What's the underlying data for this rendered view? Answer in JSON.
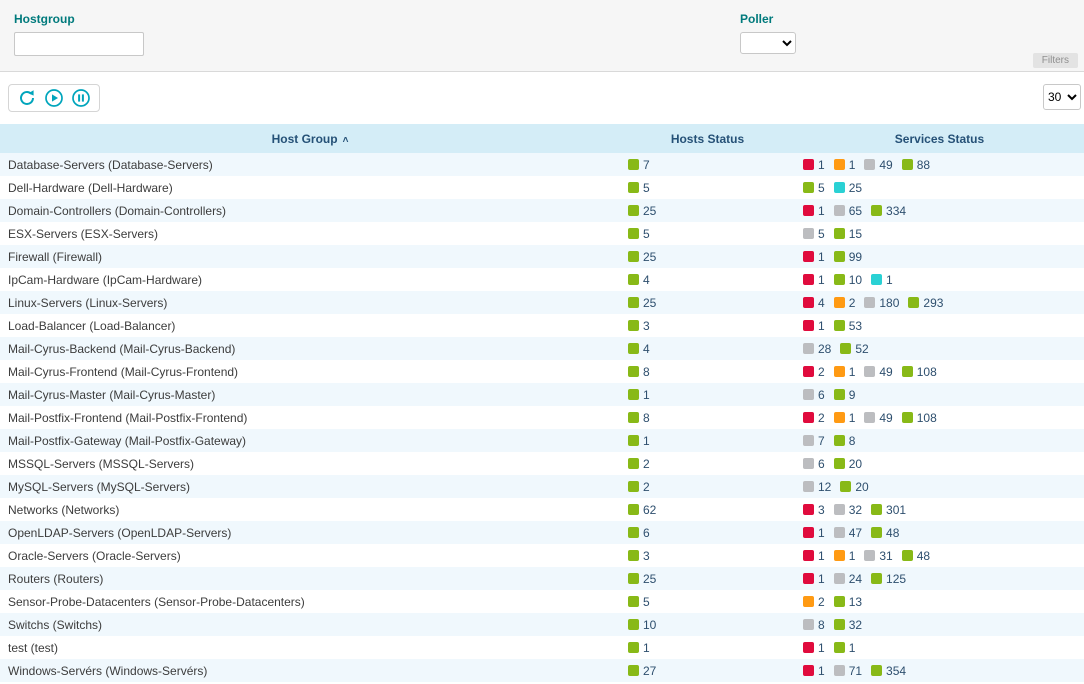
{
  "filters": {
    "hostgroup_label": "Hostgroup",
    "hostgroup_value": "",
    "poller_label": "Poller",
    "poller_value": "",
    "filters_button": "Filters"
  },
  "toolbar": {
    "refresh_icon": "refresh-icon",
    "play_icon": "play-icon",
    "pause_icon": "pause-icon",
    "page_size": "30"
  },
  "colors": {
    "ok": "#88b917",
    "critical": "#e00b3d",
    "warning": "#ff9a13",
    "unknown": "#bcbdc0",
    "pending": "#2ad1d4"
  },
  "table": {
    "columns": [
      "Host Group",
      "Hosts Status",
      "Services Status"
    ],
    "sort_column": "Host Group",
    "sort_direction": "asc",
    "rows": [
      {
        "name": "Database-Servers (Database-Servers)",
        "hosts": [
          {
            "state": "ok",
            "value": "7"
          }
        ],
        "services": [
          {
            "state": "critical",
            "value": "1"
          },
          {
            "state": "warning",
            "value": "1"
          },
          {
            "state": "unknown",
            "value": "49"
          },
          {
            "state": "ok",
            "value": "88"
          }
        ]
      },
      {
        "name": "Dell-Hardware (Dell-Hardware)",
        "hosts": [
          {
            "state": "ok",
            "value": "5"
          }
        ],
        "services": [
          {
            "state": "ok",
            "value": "5"
          },
          {
            "state": "pending",
            "value": "25"
          }
        ]
      },
      {
        "name": "Domain-Controllers (Domain-Controllers)",
        "hosts": [
          {
            "state": "ok",
            "value": "25"
          }
        ],
        "services": [
          {
            "state": "critical",
            "value": "1"
          },
          {
            "state": "unknown",
            "value": "65"
          },
          {
            "state": "ok",
            "value": "334"
          }
        ]
      },
      {
        "name": "ESX-Servers (ESX-Servers)",
        "hosts": [
          {
            "state": "ok",
            "value": "5"
          }
        ],
        "services": [
          {
            "state": "unknown",
            "value": "5"
          },
          {
            "state": "ok",
            "value": "15"
          }
        ]
      },
      {
        "name": "Firewall (Firewall)",
        "hosts": [
          {
            "state": "ok",
            "value": "25"
          }
        ],
        "services": [
          {
            "state": "critical",
            "value": "1"
          },
          {
            "state": "ok",
            "value": "99"
          }
        ]
      },
      {
        "name": "IpCam-Hardware (IpCam-Hardware)",
        "hosts": [
          {
            "state": "ok",
            "value": "4"
          }
        ],
        "services": [
          {
            "state": "critical",
            "value": "1"
          },
          {
            "state": "ok",
            "value": "10"
          },
          {
            "state": "pending",
            "value": "1"
          }
        ]
      },
      {
        "name": "Linux-Servers (Linux-Servers)",
        "hosts": [
          {
            "state": "ok",
            "value": "25"
          }
        ],
        "services": [
          {
            "state": "critical",
            "value": "4"
          },
          {
            "state": "warning",
            "value": "2"
          },
          {
            "state": "unknown",
            "value": "180"
          },
          {
            "state": "ok",
            "value": "293"
          }
        ]
      },
      {
        "name": "Load-Balancer (Load-Balancer)",
        "hosts": [
          {
            "state": "ok",
            "value": "3"
          }
        ],
        "services": [
          {
            "state": "critical",
            "value": "1"
          },
          {
            "state": "ok",
            "value": "53"
          }
        ]
      },
      {
        "name": "Mail-Cyrus-Backend (Mail-Cyrus-Backend)",
        "hosts": [
          {
            "state": "ok",
            "value": "4"
          }
        ],
        "services": [
          {
            "state": "unknown",
            "value": "28"
          },
          {
            "state": "ok",
            "value": "52"
          }
        ]
      },
      {
        "name": "Mail-Cyrus-Frontend (Mail-Cyrus-Frontend)",
        "hosts": [
          {
            "state": "ok",
            "value": "8"
          }
        ],
        "services": [
          {
            "state": "critical",
            "value": "2"
          },
          {
            "state": "warning",
            "value": "1"
          },
          {
            "state": "unknown",
            "value": "49"
          },
          {
            "state": "ok",
            "value": "108"
          }
        ]
      },
      {
        "name": "Mail-Cyrus-Master (Mail-Cyrus-Master)",
        "hosts": [
          {
            "state": "ok",
            "value": "1"
          }
        ],
        "services": [
          {
            "state": "unknown",
            "value": "6"
          },
          {
            "state": "ok",
            "value": "9"
          }
        ]
      },
      {
        "name": "Mail-Postfix-Frontend (Mail-Postfix-Frontend)",
        "hosts": [
          {
            "state": "ok",
            "value": "8"
          }
        ],
        "services": [
          {
            "state": "critical",
            "value": "2"
          },
          {
            "state": "warning",
            "value": "1"
          },
          {
            "state": "unknown",
            "value": "49"
          },
          {
            "state": "ok",
            "value": "108"
          }
        ]
      },
      {
        "name": "Mail-Postfix-Gateway (Mail-Postfix-Gateway)",
        "hosts": [
          {
            "state": "ok",
            "value": "1"
          }
        ],
        "services": [
          {
            "state": "unknown",
            "value": "7"
          },
          {
            "state": "ok",
            "value": "8"
          }
        ]
      },
      {
        "name": "MSSQL-Servers (MSSQL-Servers)",
        "hosts": [
          {
            "state": "ok",
            "value": "2"
          }
        ],
        "services": [
          {
            "state": "unknown",
            "value": "6"
          },
          {
            "state": "ok",
            "value": "20"
          }
        ]
      },
      {
        "name": "MySQL-Servers (MySQL-Servers)",
        "hosts": [
          {
            "state": "ok",
            "value": "2"
          }
        ],
        "services": [
          {
            "state": "unknown",
            "value": "12"
          },
          {
            "state": "ok",
            "value": "20"
          }
        ]
      },
      {
        "name": "Networks (Networks)",
        "hosts": [
          {
            "state": "ok",
            "value": "62"
          }
        ],
        "services": [
          {
            "state": "critical",
            "value": "3"
          },
          {
            "state": "unknown",
            "value": "32"
          },
          {
            "state": "ok",
            "value": "301"
          }
        ]
      },
      {
        "name": "OpenLDAP-Servers (OpenLDAP-Servers)",
        "hosts": [
          {
            "state": "ok",
            "value": "6"
          }
        ],
        "services": [
          {
            "state": "critical",
            "value": "1"
          },
          {
            "state": "unknown",
            "value": "47"
          },
          {
            "state": "ok",
            "value": "48"
          }
        ]
      },
      {
        "name": "Oracle-Servers (Oracle-Servers)",
        "hosts": [
          {
            "state": "ok",
            "value": "3"
          }
        ],
        "services": [
          {
            "state": "critical",
            "value": "1"
          },
          {
            "state": "warning",
            "value": "1"
          },
          {
            "state": "unknown",
            "value": "31"
          },
          {
            "state": "ok",
            "value": "48"
          }
        ]
      },
      {
        "name": "Routers (Routers)",
        "hosts": [
          {
            "state": "ok",
            "value": "25"
          }
        ],
        "services": [
          {
            "state": "critical",
            "value": "1"
          },
          {
            "state": "unknown",
            "value": "24"
          },
          {
            "state": "ok",
            "value": "125"
          }
        ]
      },
      {
        "name": "Sensor-Probe-Datacenters (Sensor-Probe-Datacenters)",
        "hosts": [
          {
            "state": "ok",
            "value": "5"
          }
        ],
        "services": [
          {
            "state": "warning",
            "value": "2"
          },
          {
            "state": "ok",
            "value": "13"
          }
        ]
      },
      {
        "name": "Switchs (Switchs)",
        "hosts": [
          {
            "state": "ok",
            "value": "10"
          }
        ],
        "services": [
          {
            "state": "unknown",
            "value": "8"
          },
          {
            "state": "ok",
            "value": "32"
          }
        ]
      },
      {
        "name": "test (test)",
        "hosts": [
          {
            "state": "ok",
            "value": "1"
          }
        ],
        "services": [
          {
            "state": "critical",
            "value": "1"
          },
          {
            "state": "ok",
            "value": "1"
          }
        ]
      },
      {
        "name": "Windows-Servérs (Windows-Servérs)",
        "hosts": [
          {
            "state": "ok",
            "value": "27"
          }
        ],
        "services": [
          {
            "state": "critical",
            "value": "1"
          },
          {
            "state": "unknown",
            "value": "71"
          },
          {
            "state": "ok",
            "value": "354"
          }
        ]
      }
    ]
  }
}
